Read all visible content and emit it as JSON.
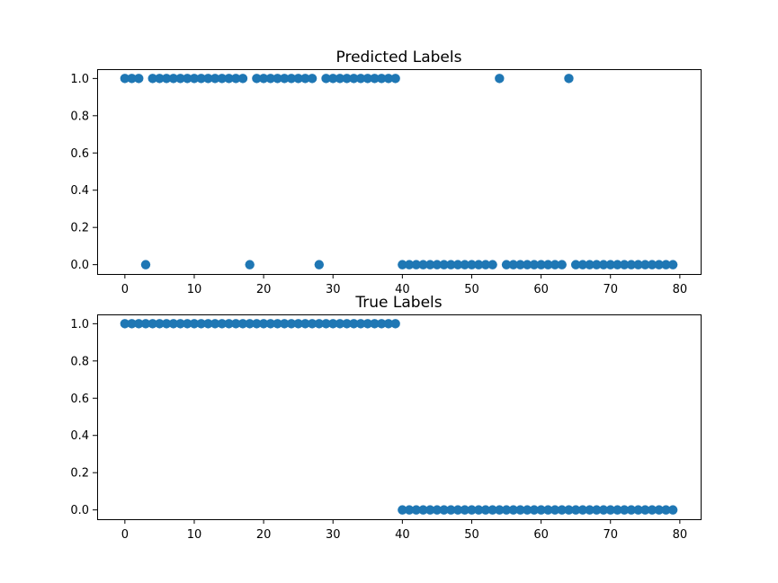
{
  "chart_data": [
    {
      "type": "scatter",
      "title": "Predicted Labels",
      "xlabel": "",
      "ylabel": "",
      "xlim": [
        -4,
        83
      ],
      "ylim": [
        -0.05,
        1.05
      ],
      "xticks": [
        0,
        10,
        20,
        30,
        40,
        50,
        60,
        70,
        80
      ],
      "yticks": [
        0.0,
        0.2,
        0.4,
        0.6,
        0.8,
        1.0
      ],
      "ytick_labels": [
        "0.0",
        "0.2",
        "0.4",
        "0.6",
        "0.8",
        "1.0"
      ],
      "grid": false,
      "color": "#1f77b4",
      "x": [
        0,
        1,
        2,
        3,
        4,
        5,
        6,
        7,
        8,
        9,
        10,
        11,
        12,
        13,
        14,
        15,
        16,
        17,
        18,
        19,
        20,
        21,
        22,
        23,
        24,
        25,
        26,
        27,
        28,
        29,
        30,
        31,
        32,
        33,
        34,
        35,
        36,
        37,
        38,
        39,
        40,
        41,
        42,
        43,
        44,
        45,
        46,
        47,
        48,
        49,
        50,
        51,
        52,
        53,
        54,
        55,
        56,
        57,
        58,
        59,
        60,
        61,
        62,
        63,
        64,
        65,
        66,
        67,
        68,
        69,
        70,
        71,
        72,
        73,
        74,
        75,
        76,
        77,
        78,
        79
      ],
      "y": [
        1,
        1,
        1,
        0,
        1,
        1,
        1,
        1,
        1,
        1,
        1,
        1,
        1,
        1,
        1,
        1,
        1,
        1,
        0,
        1,
        1,
        1,
        1,
        1,
        1,
        1,
        1,
        1,
        0,
        1,
        1,
        1,
        1,
        1,
        1,
        1,
        1,
        1,
        1,
        1,
        0,
        0,
        0,
        0,
        0,
        0,
        0,
        0,
        0,
        0,
        0,
        0,
        0,
        0,
        1,
        0,
        0,
        0,
        0,
        0,
        0,
        0,
        0,
        0,
        1,
        0,
        0,
        0,
        0,
        0,
        0,
        0,
        0,
        0,
        0,
        0,
        0,
        0,
        0,
        0
      ]
    },
    {
      "type": "scatter",
      "title": "True Labels",
      "xlabel": "",
      "ylabel": "",
      "xlim": [
        -4,
        83
      ],
      "ylim": [
        -0.05,
        1.05
      ],
      "xticks": [
        0,
        10,
        20,
        30,
        40,
        50,
        60,
        70,
        80
      ],
      "yticks": [
        0.0,
        0.2,
        0.4,
        0.6,
        0.8,
        1.0
      ],
      "ytick_labels": [
        "0.0",
        "0.2",
        "0.4",
        "0.6",
        "0.8",
        "1.0"
      ],
      "grid": false,
      "color": "#1f77b4",
      "x": [
        0,
        1,
        2,
        3,
        4,
        5,
        6,
        7,
        8,
        9,
        10,
        11,
        12,
        13,
        14,
        15,
        16,
        17,
        18,
        19,
        20,
        21,
        22,
        23,
        24,
        25,
        26,
        27,
        28,
        29,
        30,
        31,
        32,
        33,
        34,
        35,
        36,
        37,
        38,
        39,
        40,
        41,
        42,
        43,
        44,
        45,
        46,
        47,
        48,
        49,
        50,
        51,
        52,
        53,
        54,
        55,
        56,
        57,
        58,
        59,
        60,
        61,
        62,
        63,
        64,
        65,
        66,
        67,
        68,
        69,
        70,
        71,
        72,
        73,
        74,
        75,
        76,
        77,
        78,
        79
      ],
      "y": [
        1,
        1,
        1,
        1,
        1,
        1,
        1,
        1,
        1,
        1,
        1,
        1,
        1,
        1,
        1,
        1,
        1,
        1,
        1,
        1,
        1,
        1,
        1,
        1,
        1,
        1,
        1,
        1,
        1,
        1,
        1,
        1,
        1,
        1,
        1,
        1,
        1,
        1,
        1,
        1,
        0,
        0,
        0,
        0,
        0,
        0,
        0,
        0,
        0,
        0,
        0,
        0,
        0,
        0,
        0,
        0,
        0,
        0,
        0,
        0,
        0,
        0,
        0,
        0,
        0,
        0,
        0,
        0,
        0,
        0,
        0,
        0,
        0,
        0,
        0,
        0,
        0,
        0,
        0,
        0
      ]
    }
  ]
}
